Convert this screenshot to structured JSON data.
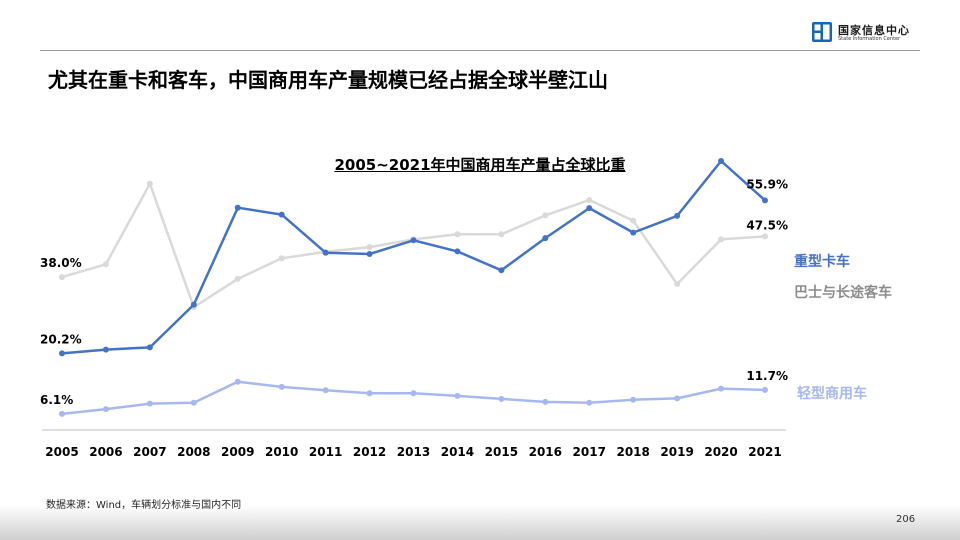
{
  "logo": {
    "cn": "国家信息中心",
    "en": "State Information Center"
  },
  "page": {
    "title": "尤其在重卡和客车，中国商用车产量规模已经占据全球半壁江山",
    "number": "206"
  },
  "source": "数据来源：Wind，车辆划分标准与国内不同",
  "colors": {
    "brand": "#1466b8",
    "heavy": "#4472c4",
    "bus": "#d9d9d9",
    "light": "#a6b8ef"
  },
  "chart_data": {
    "type": "line",
    "title": "2005~2021年中国商用车产量占全球比重",
    "categories": [
      "2005",
      "2006",
      "2007",
      "2008",
      "2009",
      "2010",
      "2011",
      "2012",
      "2013",
      "2014",
      "2015",
      "2016",
      "2017",
      "2018",
      "2019",
      "2020",
      "2021"
    ],
    "ylim": [
      0,
      70
    ],
    "grid": false,
    "legend": "right, labels at line ends",
    "series": [
      {
        "name": "重型卡车",
        "color": "#4472c4",
        "values": [
          20.2,
          21.1,
          21.6,
          31.6,
          54.2,
          52.6,
          43.7,
          43.4,
          46.6,
          44.0,
          39.6,
          47.1,
          54.1,
          48.4,
          52.3,
          65.1,
          55.9
        ],
        "labels": {
          "0": "20.2%",
          "16": "55.9%"
        }
      },
      {
        "name": "巴士与长途客车",
        "color": "#d9d9d9",
        "values": [
          38.0,
          41.0,
          59.8,
          31.0,
          37.6,
          42.4,
          43.9,
          45.0,
          46.8,
          48.0,
          48.0,
          52.4,
          56.0,
          51.2,
          36.4,
          46.8,
          47.5
        ],
        "labels": {
          "0": "38.0%",
          "16": "47.5%"
        }
      },
      {
        "name": "轻型商用车",
        "color": "#a6b8ef",
        "values": [
          6.1,
          7.2,
          8.5,
          8.7,
          13.6,
          12.4,
          11.6,
          10.9,
          10.9,
          10.3,
          9.6,
          8.9,
          8.7,
          9.4,
          9.7,
          12.0,
          11.7
        ],
        "labels": {
          "0": "6.1%",
          "16": "11.7%"
        }
      }
    ]
  }
}
